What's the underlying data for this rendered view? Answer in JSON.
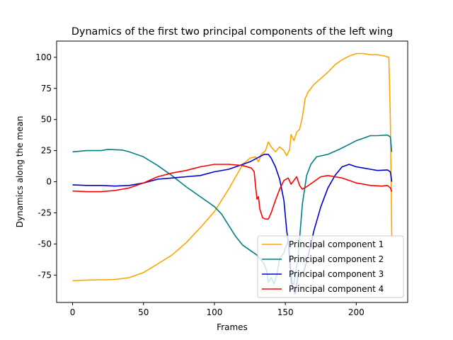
{
  "chart_data": {
    "type": "line",
    "title": "Dynamics of the first two principal components of the left wing",
    "xlabel": "Frames",
    "ylabel": "Dynamics along the mean",
    "xlim": [
      -11.25,
      236.25
    ],
    "ylim": [
      -97,
      113
    ],
    "xticks": [
      0,
      50,
      100,
      150,
      200
    ],
    "yticks": [
      -75,
      -50,
      -25,
      0,
      25,
      50,
      75,
      100
    ],
    "grid": false,
    "legend_position": "lower right",
    "series": [
      {
        "name": "Principal component 1",
        "color": "#FFA500",
        "points": [
          [
            0,
            -79.5
          ],
          [
            10,
            -79
          ],
          [
            20,
            -78.8
          ],
          [
            30,
            -78.5
          ],
          [
            40,
            -77
          ],
          [
            50,
            -73
          ],
          [
            60,
            -66
          ],
          [
            70,
            -59
          ],
          [
            80,
            -49
          ],
          [
            90,
            -37
          ],
          [
            100,
            -24
          ],
          [
            110,
            -6
          ],
          [
            116,
            6
          ],
          [
            120,
            14
          ],
          [
            125,
            19
          ],
          [
            129,
            20
          ],
          [
            131,
            16
          ],
          [
            133,
            22
          ],
          [
            136,
            25
          ],
          [
            138,
            32
          ],
          [
            140,
            28
          ],
          [
            143,
            24
          ],
          [
            146,
            28
          ],
          [
            149,
            25
          ],
          [
            151,
            21
          ],
          [
            153,
            26
          ],
          [
            154,
            38
          ],
          [
            156,
            33
          ],
          [
            158,
            40
          ],
          [
            160,
            42
          ],
          [
            162,
            52
          ],
          [
            164,
            67
          ],
          [
            166,
            72
          ],
          [
            170,
            78
          ],
          [
            175,
            83
          ],
          [
            180,
            88
          ],
          [
            185,
            94
          ],
          [
            190,
            98
          ],
          [
            195,
            101
          ],
          [
            200,
            103
          ],
          [
            205,
            103
          ],
          [
            210,
            102
          ],
          [
            215,
            102
          ],
          [
            220,
            101
          ],
          [
            223,
            100
          ],
          [
            224,
            50
          ],
          [
            225,
            -45
          ]
        ]
      },
      {
        "name": "Principal component 2",
        "color": "#008080",
        "points": [
          [
            0,
            24
          ],
          [
            10,
            25
          ],
          [
            20,
            25
          ],
          [
            25,
            26
          ],
          [
            35,
            25.5
          ],
          [
            40,
            24
          ],
          [
            50,
            20
          ],
          [
            60,
            13
          ],
          [
            70,
            5
          ],
          [
            80,
            -4
          ],
          [
            90,
            -12
          ],
          [
            100,
            -20
          ],
          [
            105,
            -26
          ],
          [
            110,
            -35
          ],
          [
            115,
            -44
          ],
          [
            120,
            -51
          ],
          [
            125,
            -55
          ],
          [
            130,
            -59
          ],
          [
            135,
            -66
          ],
          [
            137,
            -72
          ],
          [
            138,
            -81
          ],
          [
            140,
            -77
          ],
          [
            142,
            -82
          ],
          [
            144,
            -75
          ],
          [
            146,
            -62
          ],
          [
            149,
            -57
          ],
          [
            152,
            -47
          ],
          [
            154,
            -82
          ],
          [
            156,
            -82
          ],
          [
            159,
            -60
          ],
          [
            162,
            -18
          ],
          [
            165,
            5
          ],
          [
            168,
            14
          ],
          [
            172,
            20
          ],
          [
            180,
            22
          ],
          [
            188,
            26
          ],
          [
            195,
            30
          ],
          [
            200,
            33
          ],
          [
            205,
            35
          ],
          [
            210,
            37
          ],
          [
            215,
            37
          ],
          [
            222,
            37.5
          ],
          [
            224,
            36
          ],
          [
            225,
            24
          ]
        ]
      },
      {
        "name": "Principal component 3",
        "color": "#0000CD",
        "points": [
          [
            0,
            -2.5
          ],
          [
            10,
            -3
          ],
          [
            20,
            -3
          ],
          [
            30,
            -3.5
          ],
          [
            40,
            -3
          ],
          [
            50,
            -1
          ],
          [
            60,
            2
          ],
          [
            70,
            3
          ],
          [
            80,
            4
          ],
          [
            90,
            5
          ],
          [
            100,
            8
          ],
          [
            110,
            10
          ],
          [
            115,
            12
          ],
          [
            120,
            14
          ],
          [
            125,
            16
          ],
          [
            130,
            19
          ],
          [
            135,
            22
          ],
          [
            138,
            22
          ],
          [
            140,
            19
          ],
          [
            143,
            12
          ],
          [
            146,
            2
          ],
          [
            149,
            -15
          ],
          [
            151,
            -40
          ],
          [
            152,
            -48
          ],
          [
            155,
            -86
          ],
          [
            157,
            -90
          ],
          [
            159,
            -75
          ],
          [
            163,
            -72
          ],
          [
            166,
            -60
          ],
          [
            170,
            -40
          ],
          [
            175,
            -20
          ],
          [
            180,
            -5
          ],
          [
            185,
            5
          ],
          [
            190,
            12
          ],
          [
            195,
            14
          ],
          [
            200,
            12
          ],
          [
            205,
            11
          ],
          [
            210,
            10
          ],
          [
            215,
            9
          ],
          [
            222,
            9.5
          ],
          [
            224,
            8
          ],
          [
            225,
            0
          ]
        ]
      },
      {
        "name": "Principal component 4",
        "color": "#FF0000",
        "points": [
          [
            0,
            -7.5
          ],
          [
            10,
            -8
          ],
          [
            20,
            -8
          ],
          [
            30,
            -7
          ],
          [
            40,
            -5
          ],
          [
            50,
            -1
          ],
          [
            60,
            4
          ],
          [
            70,
            7
          ],
          [
            80,
            9
          ],
          [
            90,
            12
          ],
          [
            100,
            14
          ],
          [
            110,
            14
          ],
          [
            120,
            13
          ],
          [
            126,
            11
          ],
          [
            128,
            8
          ],
          [
            129,
            -4
          ],
          [
            130,
            -14
          ],
          [
            131,
            -12
          ],
          [
            132,
            -22
          ],
          [
            134,
            -29
          ],
          [
            136,
            -30
          ],
          [
            138,
            -30
          ],
          [
            140,
            -25
          ],
          [
            143,
            -15
          ],
          [
            146,
            -6
          ],
          [
            149,
            1
          ],
          [
            152,
            3
          ],
          [
            154,
            -2
          ],
          [
            156,
            1
          ],
          [
            158,
            4
          ],
          [
            160,
            -3
          ],
          [
            162,
            -6
          ],
          [
            165,
            -4
          ],
          [
            170,
            0
          ],
          [
            175,
            4
          ],
          [
            180,
            5
          ],
          [
            185,
            4
          ],
          [
            190,
            3
          ],
          [
            195,
            1
          ],
          [
            200,
            -1
          ],
          [
            210,
            -3
          ],
          [
            218,
            -3.5
          ],
          [
            222,
            -3
          ],
          [
            224,
            -5
          ],
          [
            225,
            -8
          ]
        ]
      }
    ]
  }
}
